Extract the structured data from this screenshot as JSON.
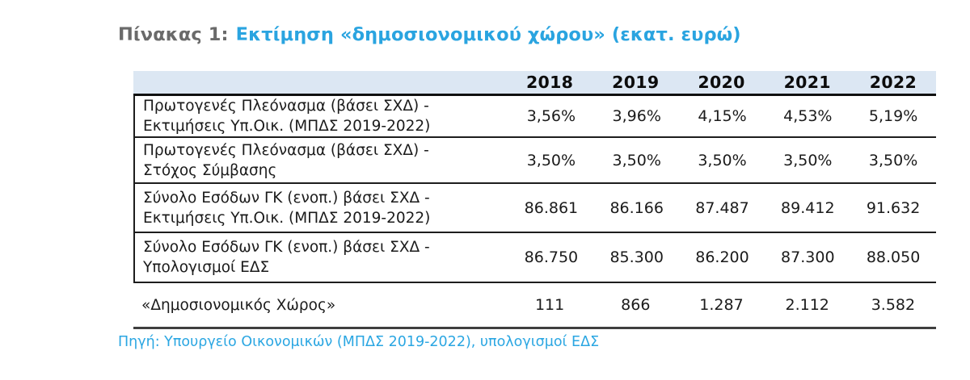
{
  "page": {
    "title": {
      "prefix": "Πίνακας 1:",
      "main": "Εκτίμηση «δημοσιονομικού χώρου» (εκατ. ευρώ)"
    },
    "source": "Πηγή: Υπουργείο Οικονομικών (ΜΠΔΣ 2019-2022), υπολογισμοί ΕΔΣ"
  },
  "table": {
    "header": {
      "years": [
        "2018",
        "2019",
        "2020",
        "2021",
        "2022"
      ]
    },
    "rows": [
      {
        "label_lines": [
          "Πρωτογενές Πλεόνασμα (βάσει ΣΧΔ) -",
          "Εκτιμήσεις Υπ.Οικ. (ΜΠΔΣ 2019-2022)"
        ],
        "values": [
          "3,56%",
          "3,96%",
          "4,15%",
          "4,53%",
          "5,19%"
        ]
      },
      {
        "label_lines": [
          "Πρωτογενές Πλεόνασμα (βάσει ΣΧΔ) -",
          "Στόχος Σύμβασης"
        ],
        "values": [
          "3,50%",
          "3,50%",
          "3,50%",
          "3,50%",
          "3,50%"
        ]
      },
      {
        "label_lines": [
          "Σύνολο Εσόδων ΓΚ (ενοπ.) βάσει ΣΧΔ -",
          "Εκτιμήσεις Υπ.Οικ. (ΜΠΔΣ 2019-2022)"
        ],
        "values": [
          "86.861",
          "86.166",
          "87.487",
          "89.412",
          "91.632"
        ]
      },
      {
        "label_lines": [
          "Σύνολο Εσόδων ΓΚ (ενοπ.) βάσει ΣΧΔ -",
          "Υπολογισμοί ΕΔΣ"
        ],
        "values": [
          "86.750",
          "85.300",
          "86.200",
          "87.300",
          "88.050"
        ]
      },
      {
        "label_lines": [
          "«Δημοσιονομικός Χώρος»"
        ],
        "values": [
          "111",
          "866",
          "1.287",
          "2.112",
          "3.582"
        ]
      }
    ]
  },
  "colors": {
    "accent_blue": "#2aa4e0",
    "title_gray": "#6a6a6a",
    "header_bg": "#dce7f3",
    "border_dark": "#1d1d1d",
    "text_dark": "#1b1b1b"
  }
}
